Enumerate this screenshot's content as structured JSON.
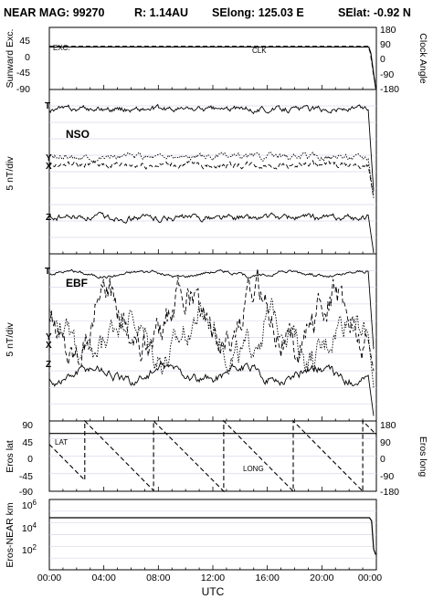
{
  "header": {
    "mission": "NEAR MAG: 99270",
    "distance": "R: 1.14AU",
    "selong": "SElong: 125.03 E",
    "selat": "SElat:  -0.92 N"
  },
  "xaxis": {
    "title": "UTC",
    "ticks": [
      "00:00",
      "04:00",
      "08:00",
      "12:00",
      "16:00",
      "20:00",
      "00:00"
    ],
    "range_hours": [
      0,
      24
    ]
  },
  "chart_data": [
    {
      "type": "line",
      "panel": "angles",
      "ylabel": "Sunward Exc.",
      "ylabel_right": "Clock Angle",
      "yticks_left": [
        "45",
        "0",
        "-45",
        "-90"
      ],
      "yticks_right": [
        "180",
        "90",
        "0",
        "-90",
        "-180"
      ],
      "ylim_left": [
        -90,
        90
      ],
      "ylim_right": [
        -180,
        180
      ],
      "annotations": [
        "EXC.",
        "CLK"
      ],
      "series": [
        {
          "name": "EXC.",
          "style": "solid",
          "x": [
            0,
            23.45,
            23.6,
            23.75,
            23.95
          ],
          "y": [
            33,
            33,
            15,
            -30,
            -88
          ]
        },
        {
          "name": "CLK",
          "style": "dashed",
          "x": [
            0,
            23.4,
            23.55,
            23.7,
            23.8,
            23.95
          ],
          "y": [
            70,
            70,
            35,
            -40,
            -100,
            -150
          ]
        }
      ]
    },
    {
      "type": "line",
      "panel": "NSO",
      "ylabel": "5 nT/div",
      "frame_label": "NSO",
      "component_labels": [
        "T",
        "Y",
        "X",
        "Z"
      ],
      "series": [
        {
          "name": "T",
          "style": "solid",
          "level": 8.8,
          "amp": 0.45,
          "drop": 5.0
        },
        {
          "name": "Y",
          "style": "dotted",
          "level": 5.9,
          "amp": 0.5,
          "drop": 2.5
        },
        {
          "name": "X",
          "style": "dashed",
          "level": 5.4,
          "amp": 0.5,
          "drop": 2.0
        },
        {
          "name": "Z",
          "style": "solid",
          "level": 2.2,
          "amp": 0.5,
          "drop": 3.5
        }
      ]
    },
    {
      "type": "line",
      "panel": "EBF",
      "ylabel": "5 nT/div",
      "frame_label": "EBF",
      "component_labels": [
        "T",
        "Y",
        "X",
        "Z"
      ],
      "series": [
        {
          "name": "T",
          "style": "solid",
          "level": 8.8,
          "amp": 0.25,
          "drop": 4.5
        },
        {
          "name": "Y",
          "style": "dotted",
          "level": 5.0,
          "amp": 2.2,
          "drop": 3.0
        },
        {
          "name": "X",
          "style": "dashed",
          "level": 6.0,
          "amp": 2.6,
          "drop": 3.0
        },
        {
          "name": "Z",
          "style": "solid",
          "level": 2.8,
          "amp": 0.7,
          "drop": 2.5
        }
      ]
    },
    {
      "type": "line",
      "panel": "eros-position",
      "ylabel": "Eros lat",
      "ylabel_right": "Eros long",
      "yticks_left": [
        "90",
        "45",
        "0",
        "-45",
        "-90"
      ],
      "yticks_right": [
        "180",
        "90",
        "0",
        "-90",
        "-180"
      ],
      "ylim_left": [
        -90,
        90
      ],
      "ylim_right": [
        -180,
        180
      ],
      "annotations": [
        "LAT",
        "LONG"
      ],
      "series": [
        {
          "name": "LAT",
          "style": "solid",
          "x": [
            0,
            24
          ],
          "y": [
            58,
            58
          ]
        },
        {
          "name": "LONG",
          "style": "dashed",
          "sawtooth_wraps_hours": [
            2.6,
            7.65,
            12.8,
            17.9,
            23.0
          ],
          "range": [
            -180,
            180
          ]
        }
      ]
    },
    {
      "type": "line",
      "panel": "distance",
      "ylabel": "Eros-NEAR km",
      "yscale": "log",
      "yticks": [
        "10^6",
        "10^4",
        "10^2"
      ],
      "ylim": [
        10,
        1000000
      ],
      "series": [
        {
          "name": "distance",
          "style": "solid",
          "x": [
            0,
            23.5,
            23.65,
            23.8,
            23.95
          ],
          "y": [
            50000,
            50000,
            30000,
            300,
            120
          ]
        }
      ]
    }
  ]
}
